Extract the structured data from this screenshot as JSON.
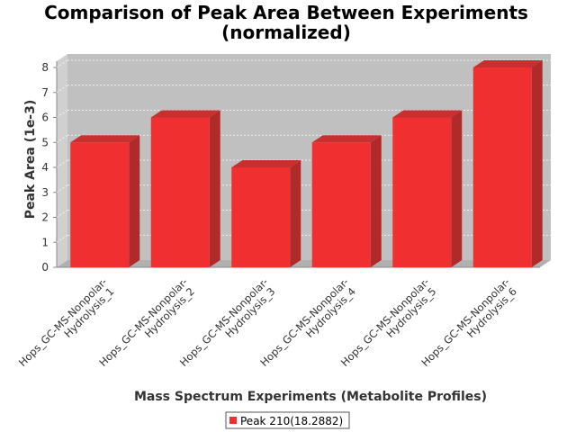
{
  "chart_data": {
    "type": "bar",
    "title_lines": [
      "Comparison of Peak Area Between Experiments",
      "(normalized)"
    ],
    "xlabel": "Mass Spectrum Experiments (Metabolite Profiles)",
    "ylabel": "Peak Area (1e-3)",
    "categories": [
      [
        "Hops_GC-MS-Nonpolar-",
        "Hydrolysis_1"
      ],
      [
        "Hops_GC-MS-Nonpolar-",
        "Hydrolysis_2"
      ],
      [
        "Hops_GC-MS-Nonpolar-",
        "Hydrolysis_3"
      ],
      [
        "Hops_GC-MS-Nonpolar-",
        "Hydrolysis_4"
      ],
      [
        "Hops_GC-MS-Nonpolar-",
        "Hydrolysis_5"
      ],
      [
        "Hops_GC-MS-Nonpolar-",
        "Hydrolysis_6"
      ]
    ],
    "series": [
      {
        "name": "Peak 210(18.2882)",
        "values": [
          5,
          6,
          4,
          5,
          6,
          8
        ],
        "color": "#f03030"
      }
    ],
    "ylim": [
      0,
      8
    ],
    "yticks": [
      0,
      1,
      2,
      3,
      4,
      5,
      6,
      7,
      8
    ],
    "grid": true,
    "legend_position": "bottom",
    "plot_background": "#c0c0c0"
  }
}
